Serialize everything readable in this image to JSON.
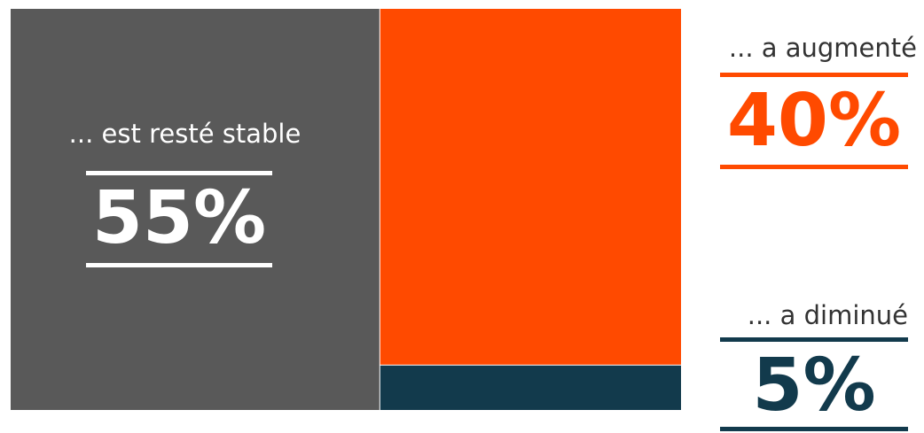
{
  "chart_data": {
    "type": "treemap",
    "unit": "%",
    "items": [
      {
        "label": "... est resté stable",
        "value": 55,
        "display": "55%",
        "color": "#595959",
        "label_color": "#ffffff"
      },
      {
        "label": "... a augmenté",
        "value": 40,
        "display": "40%",
        "color": "#ff4a00"
      },
      {
        "label": "... a diminué",
        "value": 5,
        "display": "5%",
        "color": "#123a4c"
      }
    ]
  }
}
